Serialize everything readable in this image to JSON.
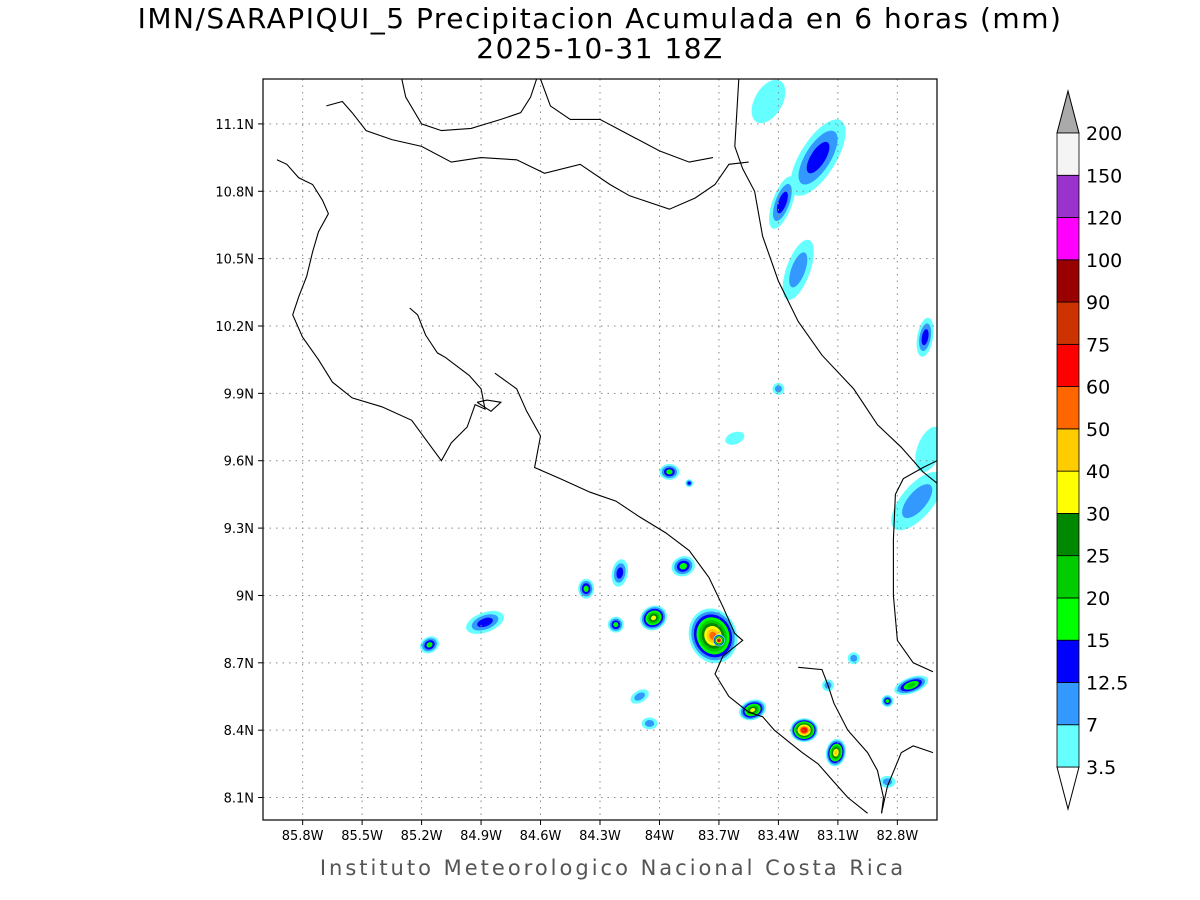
{
  "title": {
    "line1": "IMN/SARAPIQUI_5 Precipitacion Acumulada en 6 horas (mm)",
    "line2": "2025-10-31 18Z"
  },
  "footer": "Instituto Meteorologico Nacional Costa Rica",
  "map": {
    "lon_range": [
      -86.0,
      -82.6
    ],
    "lat_range": [
      8.0,
      11.3
    ],
    "lon_ticks": [
      {
        "value": -85.8,
        "label": "85.8W"
      },
      {
        "value": -85.5,
        "label": "85.5W"
      },
      {
        "value": -85.2,
        "label": "85.2W"
      },
      {
        "value": -84.9,
        "label": "84.9W"
      },
      {
        "value": -84.6,
        "label": "84.6W"
      },
      {
        "value": -84.3,
        "label": "84.3W"
      },
      {
        "value": -84.0,
        "label": "84W"
      },
      {
        "value": -83.7,
        "label": "83.7W"
      },
      {
        "value": -83.4,
        "label": "83.4W"
      },
      {
        "value": -83.1,
        "label": "83.1W"
      },
      {
        "value": -82.8,
        "label": "82.8W"
      }
    ],
    "lat_ticks": [
      {
        "value": 8.1,
        "label": "8.1N"
      },
      {
        "value": 8.4,
        "label": "8.4N"
      },
      {
        "value": 8.7,
        "label": "8.7N"
      },
      {
        "value": 9.0,
        "label": "9N"
      },
      {
        "value": 9.3,
        "label": "9.3N"
      },
      {
        "value": 9.6,
        "label": "9.6N"
      },
      {
        "value": 9.9,
        "label": "9.9N"
      },
      {
        "value": 10.2,
        "label": "10.2N"
      },
      {
        "value": 10.5,
        "label": "10.5N"
      },
      {
        "value": 10.8,
        "label": "10.8N"
      },
      {
        "value": 11.1,
        "label": "11.1N"
      }
    ],
    "grid": "dotted",
    "coastline_color": "#000000",
    "coastlines": [
      [
        [
          -85.93,
          10.94
        ],
        [
          -85.88,
          10.92
        ],
        [
          -85.82,
          10.86
        ],
        [
          -85.75,
          10.83
        ],
        [
          -85.7,
          10.76
        ],
        [
          -85.67,
          10.7
        ],
        [
          -85.72,
          10.62
        ],
        [
          -85.75,
          10.53
        ],
        [
          -85.78,
          10.42
        ],
        [
          -85.82,
          10.33
        ],
        [
          -85.85,
          10.25
        ],
        [
          -85.8,
          10.15
        ],
        [
          -85.72,
          10.05
        ],
        [
          -85.65,
          9.95
        ],
        [
          -85.55,
          9.88
        ],
        [
          -85.4,
          9.84
        ],
        [
          -85.25,
          9.78
        ],
        [
          -85.15,
          9.66
        ],
        [
          -85.1,
          9.6
        ],
        [
          -85.05,
          9.68
        ],
        [
          -84.97,
          9.75
        ],
        [
          -84.93,
          9.85
        ],
        [
          -84.88,
          9.83
        ],
        [
          -84.9,
          9.92
        ],
        [
          -84.96,
          9.98
        ],
        [
          -85.02,
          10.02
        ],
        [
          -85.08,
          10.06
        ],
        [
          -85.12,
          10.08
        ],
        [
          -85.15,
          10.12
        ],
        [
          -85.18,
          10.16
        ],
        [
          -85.22,
          10.25
        ],
        [
          -85.26,
          10.28
        ]
      ],
      [
        [
          -84.83,
          9.99
        ],
        [
          -84.72,
          9.92
        ],
        [
          -84.67,
          9.82
        ],
        [
          -84.6,
          9.71
        ],
        [
          -84.63,
          9.57
        ],
        [
          -84.5,
          9.52
        ],
        [
          -84.35,
          9.46
        ],
        [
          -84.22,
          9.42
        ],
        [
          -84.1,
          9.35
        ],
        [
          -83.97,
          9.28
        ],
        [
          -83.85,
          9.2
        ],
        [
          -83.75,
          9.08
        ],
        [
          -83.68,
          8.95
        ],
        [
          -83.62,
          8.83
        ],
        [
          -83.58,
          8.8
        ],
        [
          -83.68,
          8.73
        ],
        [
          -83.72,
          8.65
        ],
        [
          -83.65,
          8.55
        ],
        [
          -83.55,
          8.48
        ],
        [
          -83.48,
          8.46
        ],
        [
          -83.42,
          8.4
        ],
        [
          -83.35,
          8.35
        ],
        [
          -83.28,
          8.3
        ],
        [
          -83.2,
          8.25
        ],
        [
          -83.13,
          8.18
        ],
        [
          -83.05,
          8.1
        ],
        [
          -82.95,
          8.03
        ]
      ],
      [
        [
          -83.3,
          8.68
        ],
        [
          -83.18,
          8.67
        ],
        [
          -83.15,
          8.6
        ],
        [
          -83.12,
          8.52
        ],
        [
          -83.05,
          8.4
        ],
        [
          -82.95,
          8.3
        ],
        [
          -82.9,
          8.22
        ],
        [
          -82.87,
          8.1
        ],
        [
          -82.88,
          8.03
        ]
      ],
      [
        [
          -82.88,
          8.03
        ],
        [
          -82.85,
          8.15
        ],
        [
          -82.78,
          8.3
        ],
        [
          -82.72,
          8.33
        ],
        [
          -82.62,
          8.3
        ]
      ],
      [
        [
          -85.68,
          11.18
        ],
        [
          -85.6,
          11.2
        ],
        [
          -85.55,
          11.15
        ],
        [
          -85.48,
          11.07
        ],
        [
          -85.35,
          11.03
        ],
        [
          -85.2,
          11.0
        ],
        [
          -85.05,
          10.93
        ],
        [
          -84.9,
          10.95
        ],
        [
          -84.72,
          10.94
        ],
        [
          -84.58,
          10.88
        ],
        [
          -84.4,
          10.92
        ],
        [
          -84.25,
          10.83
        ],
        [
          -84.15,
          10.78
        ],
        [
          -83.95,
          10.72
        ],
        [
          -83.82,
          10.77
        ],
        [
          -83.72,
          10.83
        ],
        [
          -83.65,
          10.92
        ],
        [
          -83.55,
          10.93
        ]
      ],
      [
        [
          -83.6,
          11.3
        ],
        [
          -83.62,
          11.0
        ],
        [
          -83.58,
          10.9
        ],
        [
          -83.52,
          10.8
        ],
        [
          -83.48,
          10.6
        ],
        [
          -83.4,
          10.4
        ],
        [
          -83.3,
          10.22
        ],
        [
          -83.18,
          10.07
        ],
        [
          -83.02,
          9.92
        ],
        [
          -82.9,
          9.76
        ],
        [
          -82.78,
          9.66
        ],
        [
          -82.67,
          9.55
        ],
        [
          -82.6,
          9.5
        ]
      ],
      [
        [
          -82.6,
          9.6
        ],
        [
          -82.67,
          9.57
        ],
        [
          -82.77,
          9.52
        ],
        [
          -82.81,
          9.45
        ],
        [
          -82.82,
          9.25
        ],
        [
          -82.82,
          9.0
        ],
        [
          -82.8,
          8.8
        ],
        [
          -82.72,
          8.7
        ],
        [
          -82.62,
          8.66
        ]
      ],
      [
        [
          -84.92,
          9.86
        ],
        [
          -84.85,
          9.82
        ],
        [
          -84.8,
          9.86
        ],
        [
          -84.87,
          9.87
        ],
        [
          -84.92,
          9.86
        ]
      ],
      [
        [
          -84.6,
          11.3
        ],
        [
          -84.55,
          11.18
        ],
        [
          -84.45,
          11.12
        ],
        [
          -84.3,
          11.12
        ],
        [
          -84.15,
          11.05
        ],
        [
          -84.0,
          10.98
        ],
        [
          -83.85,
          10.93
        ],
        [
          -83.73,
          10.95
        ]
      ],
      [
        [
          -85.3,
          11.3
        ],
        [
          -85.28,
          11.22
        ],
        [
          -85.2,
          11.1
        ],
        [
          -85.1,
          11.07
        ],
        [
          -84.95,
          11.08
        ],
        [
          -84.8,
          11.12
        ],
        [
          -84.7,
          11.15
        ],
        [
          -84.65,
          11.22
        ],
        [
          -84.62,
          11.3
        ]
      ]
    ]
  },
  "legend": {
    "levels": [
      {
        "label": "3.5",
        "color": "#66ffff"
      },
      {
        "label": "7",
        "color": "#3399ff"
      },
      {
        "label": "12.5",
        "color": "#0000ff"
      },
      {
        "label": "15",
        "color": "#00ff00"
      },
      {
        "label": "20",
        "color": "#00cc00"
      },
      {
        "label": "25",
        "color": "#008800"
      },
      {
        "label": "30",
        "color": "#ffff00"
      },
      {
        "label": "40",
        "color": "#ffcc00"
      },
      {
        "label": "50",
        "color": "#ff6600"
      },
      {
        "label": "60",
        "color": "#ff0000"
      },
      {
        "label": "75",
        "color": "#cc3300"
      },
      {
        "label": "90",
        "color": "#990000"
      },
      {
        "label": "100",
        "color": "#ff00ff"
      },
      {
        "label": "120",
        "color": "#9933cc"
      },
      {
        "label": "150",
        "color": "#f4f4f4"
      },
      {
        "label": "200",
        "color": "#aaaaaa"
      }
    ],
    "under_color": "#ffffff",
    "over_color": "#aaaaaa"
  },
  "precip_cells": [
    {
      "lon": -83.2,
      "lat": 10.95,
      "rx": 0.22,
      "ry": 0.09,
      "rot": -58,
      "level": 2
    },
    {
      "lon": -83.38,
      "lat": 10.75,
      "rx": 0.14,
      "ry": 0.05,
      "rot": -70,
      "level": 2
    },
    {
      "lon": -83.45,
      "lat": 11.2,
      "rx": 0.12,
      "ry": 0.07,
      "rot": -60,
      "level": 0
    },
    {
      "lon": -83.3,
      "lat": 10.45,
      "rx": 0.16,
      "ry": 0.06,
      "rot": -70,
      "level": 1
    },
    {
      "lon": -82.66,
      "lat": 10.15,
      "rx": 0.1,
      "ry": 0.04,
      "rot": -80,
      "level": 2
    },
    {
      "lon": -83.4,
      "lat": 9.92,
      "rx": 0.03,
      "ry": 0.03,
      "rot": 0,
      "level": 1
    },
    {
      "lon": -82.7,
      "lat": 9.42,
      "rx": 0.18,
      "ry": 0.08,
      "rot": -50,
      "level": 1
    },
    {
      "lon": -82.64,
      "lat": 9.65,
      "rx": 0.12,
      "ry": 0.06,
      "rot": -70,
      "level": 0
    },
    {
      "lon": -83.95,
      "lat": 9.55,
      "rx": 0.05,
      "ry": 0.04,
      "rot": 0,
      "level": 3
    },
    {
      "lon": -83.85,
      "lat": 9.5,
      "rx": 0.02,
      "ry": 0.02,
      "rot": 0,
      "level": 2
    },
    {
      "lon": -83.62,
      "lat": 9.7,
      "rx": 0.05,
      "ry": 0.03,
      "rot": -20,
      "level": 0
    },
    {
      "lon": -83.88,
      "lat": 9.13,
      "rx": 0.06,
      "ry": 0.05,
      "rot": -20,
      "level": 3
    },
    {
      "lon": -84.2,
      "lat": 9.1,
      "rx": 0.04,
      "ry": 0.07,
      "rot": 10,
      "level": 2
    },
    {
      "lon": -84.37,
      "lat": 9.03,
      "rx": 0.04,
      "ry": 0.05,
      "rot": 0,
      "level": 3
    },
    {
      "lon": -84.03,
      "lat": 8.9,
      "rx": 0.07,
      "ry": 0.06,
      "rot": -30,
      "level": 6
    },
    {
      "lon": -84.22,
      "lat": 8.87,
      "rx": 0.04,
      "ry": 0.04,
      "rot": 0,
      "level": 3
    },
    {
      "lon": -83.73,
      "lat": 8.82,
      "rx": 0.12,
      "ry": 0.14,
      "rot": -20,
      "level": 8
    },
    {
      "lon": -83.7,
      "lat": 8.8,
      "rx": 0.03,
      "ry": 0.03,
      "rot": 0,
      "level": 11
    },
    {
      "lon": -83.53,
      "lat": 8.49,
      "rx": 0.07,
      "ry": 0.05,
      "rot": -20,
      "level": 6
    },
    {
      "lon": -83.27,
      "lat": 8.4,
      "rx": 0.07,
      "ry": 0.06,
      "rot": 0,
      "level": 10
    },
    {
      "lon": -83.11,
      "lat": 8.3,
      "rx": 0.05,
      "ry": 0.07,
      "rot": 10,
      "level": 7
    },
    {
      "lon": -82.73,
      "lat": 8.6,
      "rx": 0.09,
      "ry": 0.04,
      "rot": -20,
      "level": 4
    },
    {
      "lon": -82.85,
      "lat": 8.53,
      "rx": 0.03,
      "ry": 0.03,
      "rot": 0,
      "level": 3
    },
    {
      "lon": -84.88,
      "lat": 8.88,
      "rx": 0.1,
      "ry": 0.05,
      "rot": -20,
      "level": 2
    },
    {
      "lon": -85.16,
      "lat": 8.78,
      "rx": 0.05,
      "ry": 0.04,
      "rot": -30,
      "level": 3
    },
    {
      "lon": -84.05,
      "lat": 8.43,
      "rx": 0.04,
      "ry": 0.03,
      "rot": 0,
      "level": 1
    },
    {
      "lon": -84.1,
      "lat": 8.55,
      "rx": 0.05,
      "ry": 0.03,
      "rot": -30,
      "level": 1
    },
    {
      "lon": -82.85,
      "lat": 8.17,
      "rx": 0.04,
      "ry": 0.03,
      "rot": 0,
      "level": 1
    },
    {
      "lon": -83.15,
      "lat": 8.6,
      "rx": 0.03,
      "ry": 0.03,
      "rot": 0,
      "level": 1
    },
    {
      "lon": -83.02,
      "lat": 8.72,
      "rx": 0.03,
      "ry": 0.03,
      "rot": 0,
      "level": 1
    }
  ]
}
